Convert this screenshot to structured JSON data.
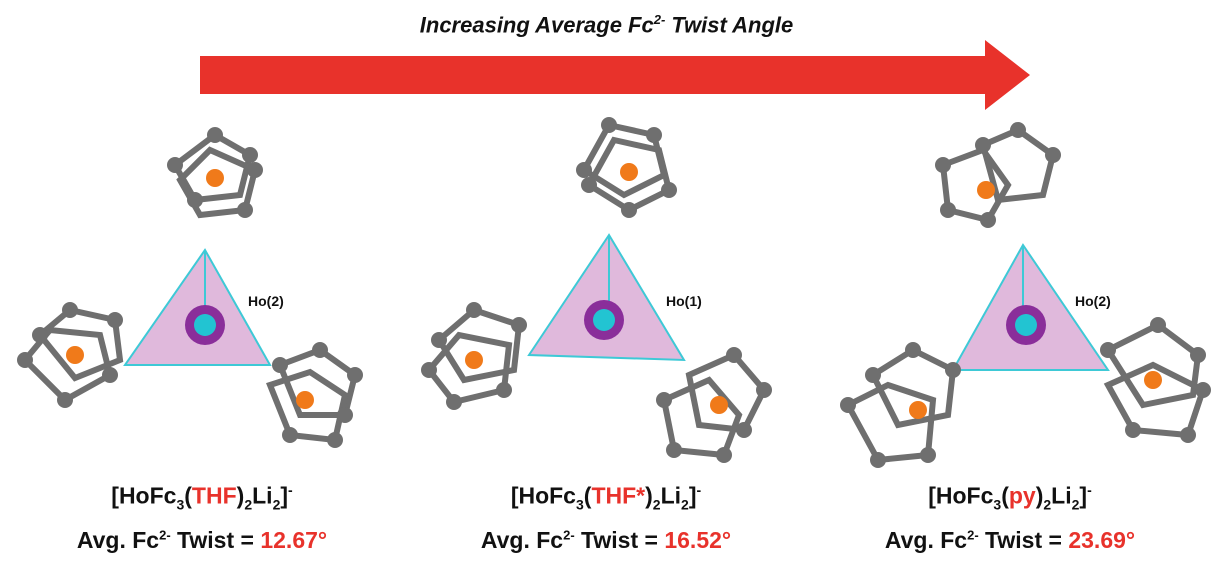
{
  "title": {
    "prefix": "Increasing Average Fc",
    "sup": "2-",
    "suffix": " Twist Angle"
  },
  "colors": {
    "arrow": "#e8322b",
    "highlight": "#e8322b",
    "atom": "#6f6f6f",
    "iron": "#f07a1a",
    "holmium": "#22c4d2",
    "polyhedron": "#c77fbf",
    "edge": "#3ec9d6"
  },
  "panels": [
    {
      "ho_label": "Ho(2)",
      "formula": {
        "open": "[HoFc",
        "sub1": "3",
        "lparen": "(",
        "ligand": "THF",
        "rparen": ")",
        "sub2": "2",
        "li": "Li",
        "sub3": "2",
        "close": "]",
        "charge": "-"
      },
      "twist": {
        "prefix": "Avg. Fc",
        "sup": "2-",
        "mid": " Twist = ",
        "value": "12.67°"
      }
    },
    {
      "ho_label": "Ho(1)",
      "formula": {
        "open": "[HoFc",
        "sub1": "3",
        "lparen": "(",
        "ligand": "THF*",
        "rparen": ")",
        "sub2": "2",
        "li": "Li",
        "sub3": "2",
        "close": "]",
        "charge": "-"
      },
      "twist": {
        "prefix": "Avg. Fc",
        "sup": "2-",
        "mid": " Twist = ",
        "value": "16.52°"
      }
    },
    {
      "ho_label": "Ho(2)",
      "formula": {
        "open": "[HoFc",
        "sub1": "3",
        "lparen": "(",
        "ligand": "py",
        "rparen": ")",
        "sub2": "2",
        "li": "Li",
        "sub3": "2",
        "close": "]",
        "charge": "-"
      },
      "twist": {
        "prefix": "Avg. Fc",
        "sup": "2-",
        "mid": " Twist = ",
        "value": "23.69°"
      }
    }
  ]
}
